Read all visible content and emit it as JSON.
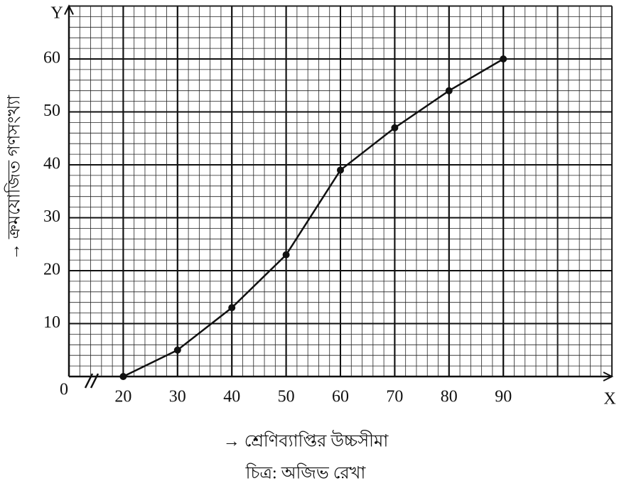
{
  "chart_data": {
    "type": "line",
    "x_axis_letter": "X",
    "y_axis_letter": "Y",
    "origin_label": "0",
    "x_label": "→ শ্রেণিব্যাপ্তির উচ্চসীমা",
    "y_label": "→ ক্রমযোজিত গণসংখ্যা",
    "caption": "চিত্র: অজিভ রেখা",
    "x": [
      20,
      30,
      40,
      50,
      60,
      70,
      80,
      90
    ],
    "series": [
      {
        "color": "#111111",
        "values": [
          0,
          5,
          13,
          23,
          39,
          47,
          54,
          60
        ]
      }
    ],
    "xlim": [
      10,
      110
    ],
    "xticks": [
      20,
      30,
      40,
      50,
      60,
      70,
      80,
      90
    ],
    "ylim": [
      0,
      70
    ],
    "yticks": [
      10,
      20,
      30,
      40,
      50,
      60
    ],
    "grid": true,
    "minor_divisions": 5
  }
}
